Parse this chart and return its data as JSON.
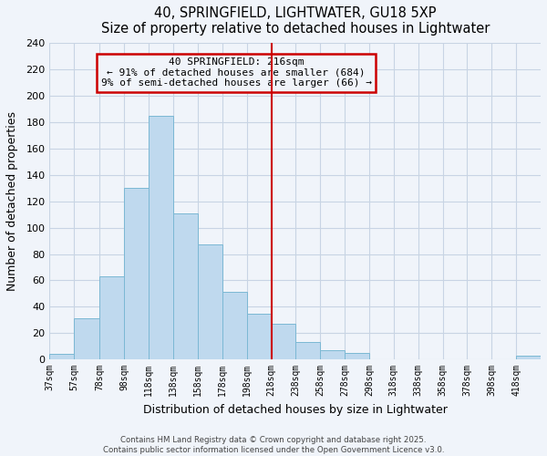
{
  "title": "40, SPRINGFIELD, LIGHTWATER, GU18 5XP",
  "subtitle": "Size of property relative to detached houses in Lightwater",
  "xlabel": "Distribution of detached houses by size in Lightwater",
  "ylabel": "Number of detached properties",
  "bar_edges": [
    37,
    57,
    78,
    98,
    118,
    138,
    158,
    178,
    198,
    218,
    238,
    258,
    278,
    298,
    318,
    338,
    358,
    378,
    398,
    418,
    438
  ],
  "bar_heights": [
    4,
    31,
    63,
    130,
    185,
    111,
    87,
    51,
    35,
    27,
    13,
    7,
    5,
    0,
    0,
    0,
    0,
    0,
    0,
    3
  ],
  "bar_color": "#BFD9EE",
  "bar_edgecolor": "#7BB8D4",
  "ylim": [
    0,
    240
  ],
  "yticks": [
    0,
    20,
    40,
    60,
    80,
    100,
    120,
    140,
    160,
    180,
    200,
    220,
    240
  ],
  "vline_x": 218,
  "vline_color": "#CC0000",
  "annotation_title": "40 SPRINGFIELD: 216sqm",
  "annotation_line1": "← 91% of detached houses are smaller (684)",
  "annotation_line2": "9% of semi-detached houses are larger (66) →",
  "annotation_box_edgecolor": "#CC0000",
  "footer_line1": "Contains HM Land Registry data © Crown copyright and database right 2025.",
  "footer_line2": "Contains public sector information licensed under the Open Government Licence v3.0.",
  "bg_color": "#F0F4FA",
  "grid_color": "#C8D4E4"
}
